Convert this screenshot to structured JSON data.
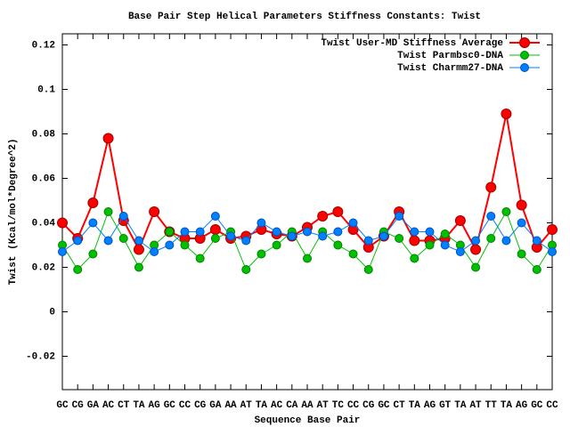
{
  "chart_data": {
    "type": "line",
    "title": "Base Pair Step Helical Parameters Stiffness Constants: Twist",
    "x_label": "Sequence Base Pair",
    "y_label": "Twist (Kcal/mol*Degree^2)",
    "categories": [
      "GC",
      "CG",
      "GA",
      "AC",
      "CT",
      "TA",
      "AG",
      "GC",
      "CC",
      "CG",
      "GA",
      "AA",
      "AT",
      "TA",
      "AC",
      "CA",
      "AA",
      "AT",
      "TC",
      "CC",
      "CG",
      "GC",
      "CT",
      "TA",
      "AG",
      "GT",
      "TA",
      "AT",
      "TT",
      "TA",
      "AG",
      "GC",
      "CC"
    ],
    "series": [
      {
        "name": "Twist User-MD Stiffness Average",
        "color": "#ff0000",
        "values": [
          0.04,
          0.033,
          0.049,
          0.078,
          0.041,
          0.028,
          0.045,
          0.036,
          0.033,
          0.033,
          0.037,
          0.033,
          0.034,
          0.037,
          0.035,
          0.034,
          0.038,
          0.043,
          0.045,
          0.037,
          0.029,
          0.034,
          0.045,
          0.032,
          0.032,
          0.033,
          0.041,
          0.028,
          0.056,
          0.089,
          0.048,
          0.029,
          0.037
        ]
      },
      {
        "name": "Twist Parmbsc0-DNA",
        "color": "#00c000",
        "values": [
          0.03,
          0.019,
          0.026,
          0.045,
          0.033,
          0.02,
          0.03,
          0.036,
          0.03,
          0.024,
          0.033,
          0.036,
          0.019,
          0.026,
          0.03,
          0.036,
          0.024,
          0.036,
          0.03,
          0.026,
          0.019,
          0.036,
          0.033,
          0.024,
          0.03,
          0.035,
          0.03,
          0.02,
          0.033,
          0.045,
          0.026,
          0.019,
          0.03
        ]
      },
      {
        "name": "Twist Charmm27-DNA",
        "color": "#0080ff",
        "values": [
          0.027,
          0.032,
          0.04,
          0.032,
          0.043,
          0.032,
          0.027,
          0.03,
          0.036,
          0.036,
          0.043,
          0.034,
          0.032,
          0.04,
          0.036,
          0.034,
          0.036,
          0.034,
          0.036,
          0.04,
          0.032,
          0.034,
          0.043,
          0.036,
          0.036,
          0.03,
          0.027,
          0.032,
          0.043,
          0.032,
          0.04,
          0.032,
          0.027
        ]
      }
    ],
    "ylim": [
      -0.035,
      0.125
    ],
    "yticks": [
      -0.02,
      0,
      0.02,
      0.04,
      0.06,
      0.08,
      0.1,
      0.12
    ],
    "legend": "upper right",
    "grid": false
  }
}
